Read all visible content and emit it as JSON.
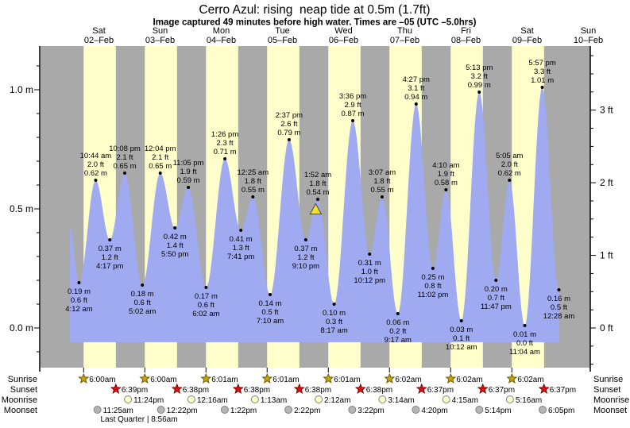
{
  "title": "Cerro Azul: rising  neap tide at 0.5m (1.7ft)",
  "subtitle": "Image captured 49 minutes before high water. Times are –05 (UTC –5.0hrs)",
  "days": [
    {
      "name": "Sat",
      "date": "02–Feb"
    },
    {
      "name": "Sun",
      "date": "03–Feb"
    },
    {
      "name": "Mon",
      "date": "04–Feb"
    },
    {
      "name": "Tue",
      "date": "05–Feb"
    },
    {
      "name": "Wed",
      "date": "06–Feb"
    },
    {
      "name": "Thu",
      "date": "07–Feb"
    },
    {
      "name": "Fri",
      "date": "08–Feb"
    },
    {
      "name": "Sat",
      "date": "09–Feb"
    },
    {
      "name": "Sun",
      "date": "10–Feb"
    }
  ],
  "axes": {
    "left_m": [
      {
        "v": 1.0,
        "label": "1.0 m"
      },
      {
        "v": 0.5,
        "label": "0.5 m"
      },
      {
        "v": 0.0,
        "label": "0.0 m"
      }
    ],
    "right_ft": [
      {
        "v": 3,
        "label": "3 ft"
      },
      {
        "v": 2,
        "label": "2 ft"
      },
      {
        "v": 1,
        "label": "1 ft"
      },
      {
        "v": 0,
        "label": "0 ft"
      }
    ]
  },
  "chart_data": {
    "type": "area",
    "title": "Cerro Azul tide height",
    "ylabel_left": "m",
    "ylabel_right": "ft",
    "ylim_m": [
      -0.17,
      1.18
    ],
    "x_window": "Sat 02-Feb 00:40 to Sun 10-Feb 00:40",
    "grid": false,
    "curve_start": {
      "day": 0,
      "time": "0:40 am",
      "m": 0.42
    },
    "curve_end": {
      "day": 8,
      "time": "0:40 am",
      "m": 0.17
    },
    "extremes": [
      {
        "day": 0,
        "type": "low",
        "time": "4:12 am",
        "m": 0.19,
        "m_label": "0.19 m",
        "ft_label": "0.6 ft"
      },
      {
        "day": 0,
        "type": "high",
        "time": "10:44 am",
        "m": 0.62,
        "m_label": "0.62 m",
        "ft_label": "2.0 ft"
      },
      {
        "day": 0,
        "type": "low",
        "time": "4:17 pm",
        "m": 0.37,
        "m_label": "0.37 m",
        "ft_label": "1.2 ft"
      },
      {
        "day": 0,
        "type": "high",
        "time": "10:08 pm",
        "m": 0.65,
        "m_label": "0.65 m",
        "ft_label": "2.1 ft"
      },
      {
        "day": 1,
        "type": "low",
        "time": "5:02 am",
        "m": 0.18,
        "m_label": "0.18 m",
        "ft_label": "0.6 ft"
      },
      {
        "day": 1,
        "type": "high",
        "time": "12:04 pm",
        "m": 0.65,
        "m_label": "0.65 m",
        "ft_label": "2.1 ft"
      },
      {
        "day": 1,
        "type": "low",
        "time": "5:50 pm",
        "m": 0.42,
        "m_label": "0.42 m",
        "ft_label": "1.4 ft"
      },
      {
        "day": 1,
        "type": "high",
        "time": "11:05 pm",
        "m": 0.59,
        "m_label": "0.59 m",
        "ft_label": "1.9 ft"
      },
      {
        "day": 2,
        "type": "low",
        "time": "6:02 am",
        "m": 0.17,
        "m_label": "0.17 m",
        "ft_label": "0.6 ft"
      },
      {
        "day": 2,
        "type": "high",
        "time": "1:26 pm",
        "m": 0.71,
        "m_label": "0.71 m",
        "ft_label": "2.3 ft"
      },
      {
        "day": 2,
        "type": "low",
        "time": "7:41 pm",
        "m": 0.41,
        "m_label": "0.41 m",
        "ft_label": "1.3 ft"
      },
      {
        "day": 3,
        "type": "high",
        "time": "12:25 am",
        "m": 0.55,
        "m_label": "0.55 m",
        "ft_label": "1.8 ft"
      },
      {
        "day": 3,
        "type": "low",
        "time": "7:10 am",
        "m": 0.14,
        "m_label": "0.14 m",
        "ft_label": "0.5 ft"
      },
      {
        "day": 3,
        "type": "high",
        "time": "2:37 pm",
        "m": 0.79,
        "m_label": "0.79 m",
        "ft_label": "2.6 ft"
      },
      {
        "day": 3,
        "type": "low",
        "time": "9:10 pm",
        "m": 0.37,
        "m_label": "0.37 m",
        "ft_label": "1.2 ft"
      },
      {
        "day": 4,
        "type": "high",
        "time": "1:52 am",
        "m": 0.54,
        "m_label": "0.54 m",
        "ft_label": "1.8 ft"
      },
      {
        "day": 4,
        "type": "low",
        "time": "8:17 am",
        "m": 0.1,
        "m_label": "0.10 m",
        "ft_label": "0.3 ft"
      },
      {
        "day": 4,
        "type": "high",
        "time": "3:36 pm",
        "m": 0.87,
        "m_label": "0.87 m",
        "ft_label": "2.9 ft"
      },
      {
        "day": 4,
        "type": "low",
        "time": "10:12 pm",
        "m": 0.31,
        "m_label": "0.31 m",
        "ft_label": "1.0 ft"
      },
      {
        "day": 5,
        "type": "high",
        "time": "3:07 am",
        "m": 0.55,
        "m_label": "0.55 m",
        "ft_label": "1.8 ft"
      },
      {
        "day": 5,
        "type": "low",
        "time": "9:17 am",
        "m": 0.06,
        "m_label": "0.06 m",
        "ft_label": "0.2 ft"
      },
      {
        "day": 5,
        "type": "high",
        "time": "4:27 pm",
        "m": 0.94,
        "m_label": "0.94 m",
        "ft_label": "3.1 ft"
      },
      {
        "day": 5,
        "type": "low",
        "time": "11:02 pm",
        "m": 0.25,
        "m_label": "0.25 m",
        "ft_label": "0.8 ft"
      },
      {
        "day": 6,
        "type": "high",
        "time": "4:10 am",
        "m": 0.58,
        "m_label": "0.58 m",
        "ft_label": "1.9 ft"
      },
      {
        "day": 6,
        "type": "low",
        "time": "10:12 am",
        "m": 0.03,
        "m_label": "0.03 m",
        "ft_label": "0.1 ft"
      },
      {
        "day": 6,
        "type": "high",
        "time": "5:13 pm",
        "m": 0.99,
        "m_label": "0.99 m",
        "ft_label": "3.2 ft"
      },
      {
        "day": 6,
        "type": "low",
        "time": "11:47 pm",
        "m": 0.2,
        "m_label": "0.20 m",
        "ft_label": "0.7 ft"
      },
      {
        "day": 7,
        "type": "high",
        "time": "5:05 am",
        "m": 0.62,
        "m_label": "0.62 m",
        "ft_label": "2.0 ft"
      },
      {
        "day": 7,
        "type": "low",
        "time": "11:04 am",
        "m": 0.01,
        "m_label": "0.01 m",
        "ft_label": "0.0 ft"
      },
      {
        "day": 7,
        "type": "high",
        "time": "5:57 pm",
        "m": 1.01,
        "m_label": "1.01 m",
        "ft_label": "3.3 ft"
      },
      {
        "day": 8,
        "type": "low",
        "time": "12:28 am",
        "m": 0.16,
        "m_label": "0.16 m",
        "ft_label": "0.5 ft"
      }
    ],
    "current_marker": {
      "day": 4,
      "time": "1:03 am",
      "m": 0.5
    }
  },
  "sun_moon": {
    "left_labels": [
      "Sunrise",
      "Sunset",
      "Moonrise",
      "Moonset"
    ],
    "right_labels": [
      "Sunrise",
      "Sunset",
      "Moonrise",
      "Moonset"
    ],
    "sunrise": [
      {
        "day": 0,
        "time": "6:00am"
      },
      {
        "day": 1,
        "time": "6:00am"
      },
      {
        "day": 2,
        "time": "6:01am"
      },
      {
        "day": 3,
        "time": "6:01am"
      },
      {
        "day": 4,
        "time": "6:01am"
      },
      {
        "day": 5,
        "time": "6:02am"
      },
      {
        "day": 6,
        "time": "6:02am"
      },
      {
        "day": 7,
        "time": "6:02am"
      }
    ],
    "sunset": [
      {
        "day": 0,
        "time": "6:39pm"
      },
      {
        "day": 1,
        "time": "6:38pm"
      },
      {
        "day": 2,
        "time": "6:38pm"
      },
      {
        "day": 3,
        "time": "6:38pm"
      },
      {
        "day": 4,
        "time": "6:38pm"
      },
      {
        "day": 5,
        "time": "6:37pm"
      },
      {
        "day": 6,
        "time": "6:37pm"
      },
      {
        "day": 7,
        "time": "6:37pm"
      }
    ],
    "moonrise": [
      {
        "day": 0,
        "time": "11:24pm"
      },
      {
        "day": 2,
        "time": "12:16am"
      },
      {
        "day": 3,
        "time": "1:13am"
      },
      {
        "day": 4,
        "time": "2:12am"
      },
      {
        "day": 5,
        "time": "3:14am"
      },
      {
        "day": 6,
        "time": "4:15am"
      },
      {
        "day": 7,
        "time": "5:16am"
      }
    ],
    "moonset": [
      {
        "day": 0,
        "time": "11:25am"
      },
      {
        "day": 1,
        "time": "12:22pm"
      },
      {
        "day": 2,
        "time": "1:22pm"
      },
      {
        "day": 3,
        "time": "2:22pm"
      },
      {
        "day": 4,
        "time": "3:22pm"
      },
      {
        "day": 5,
        "time": "4:20pm"
      },
      {
        "day": 6,
        "time": "5:14pm"
      },
      {
        "day": 7,
        "time": "6:05pm"
      }
    ],
    "moon_phase": "Last Quarter | 8:56am"
  },
  "colors": {
    "night_band": "#a9a9a9",
    "daylight_band": "#ffffcc",
    "water": "#a0aaf0",
    "day_label_red": "#e63232",
    "sunrise_star": "#c9a40a",
    "sunrise_star_edge": "#6e5c00",
    "sunset_star": "#dd1111",
    "sunset_star_edge": "#7a0000",
    "moonrise_circle": "#ffffcc",
    "moonset_circle": "#b5b5b5",
    "circle_edge": "#808080",
    "current_marker": "#f5e12d",
    "axis": "#000000"
  }
}
